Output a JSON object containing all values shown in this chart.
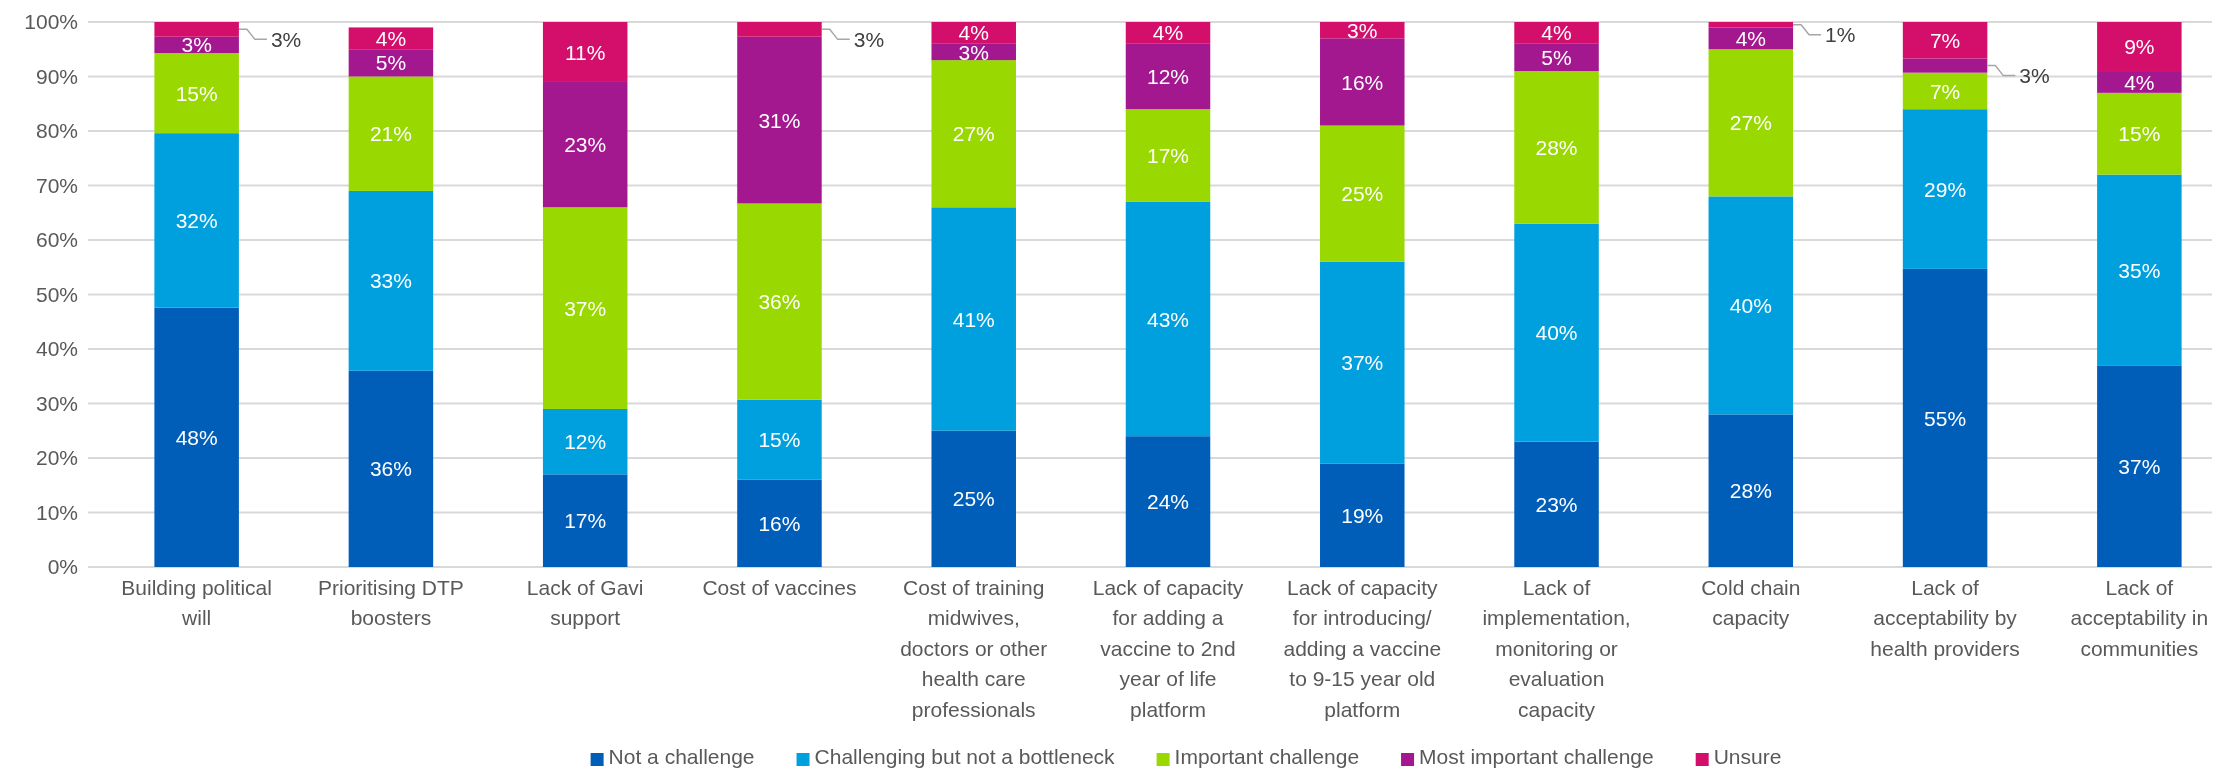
{
  "chart_data": {
    "type": "bar",
    "stacked": true,
    "categories": [
      "Building political will",
      "Prioritising DTP boosters",
      "Lack of Gavi support",
      "Cost of vaccines",
      "Cost of training midwives, doctors or other health care professionals",
      "Lack of capacity for adding a vaccine to 2nd year of life platform",
      "Lack of capacity for introducing/ adding a vaccine to 9-15 year old platform",
      "Lack of implementation, monitoring or evaluation capacity",
      "Cold chain capacity",
      "Lack of acceptability by health providers",
      "Lack of acceptability in communities"
    ],
    "series": [
      {
        "name": "Not a challenge",
        "color": "#005eb8",
        "values": [
          47.6,
          36,
          17,
          16,
          25,
          24,
          19,
          23,
          28,
          54.7,
          37
        ],
        "value_labels": [
          "48%",
          "36%",
          "17%",
          "16%",
          "25%",
          "24%",
          "19%",
          "23%",
          "28%",
          "55%",
          "37%"
        ]
      },
      {
        "name": "Challenging but not a bottleneck",
        "color": "#00a0df",
        "values": [
          32,
          33,
          12,
          14.7,
          41,
          43,
          37,
          40,
          40,
          29.3,
          35
        ],
        "value_labels": [
          "32%",
          "33%",
          "12%",
          "15%",
          "41%",
          "43%",
          "37%",
          "40%",
          "40%",
          "29%",
          "35%"
        ]
      },
      {
        "name": "Important challenge",
        "color": "#99d800",
        "values": [
          14.7,
          21,
          37,
          36,
          27,
          17,
          25,
          28,
          27,
          6.7,
          15
        ],
        "value_labels": [
          "15%",
          "21%",
          "37%",
          "36%",
          "27%",
          "17%",
          "25%",
          "28%",
          "27%",
          "7%",
          "15%"
        ]
      },
      {
        "name": "Most important challenge",
        "color": "#a4188f",
        "values": [
          3,
          5,
          23,
          30.6,
          3,
          12,
          16,
          5,
          4,
          2.6,
          4
        ],
        "value_labels": [
          "3%",
          "5%",
          "23%",
          "31%",
          "3%",
          "12%",
          "16%",
          "5%",
          "4%",
          "3%",
          "4%"
        ]
      },
      {
        "name": "Unsure",
        "color": "#d40f6b",
        "values": [
          2.7,
          4,
          11,
          2.7,
          4,
          4,
          3,
          4,
          1,
          6.7,
          9
        ],
        "value_labels": [
          "3%",
          "4%",
          "11%",
          "3%",
          "4%",
          "4%",
          "3%",
          "4%",
          "1%",
          "7%",
          "9%"
        ]
      }
    ],
    "ylim": [
      0,
      100
    ],
    "yticks": [
      {
        "value": 0,
        "label": "0%"
      },
      {
        "value": 10,
        "label": "10%"
      },
      {
        "value": 20,
        "label": "20%"
      },
      {
        "value": 30,
        "label": "30%"
      },
      {
        "value": 40,
        "label": "40%"
      },
      {
        "value": 50,
        "label": "50%"
      },
      {
        "value": 60,
        "label": "60%"
      },
      {
        "value": 70,
        "label": "70%"
      },
      {
        "value": 80,
        "label": "80%"
      },
      {
        "value": 90,
        "label": "90%"
      },
      {
        "value": 100,
        "label": "100%"
      }
    ],
    "grid": "y",
    "legend": "bottom"
  }
}
